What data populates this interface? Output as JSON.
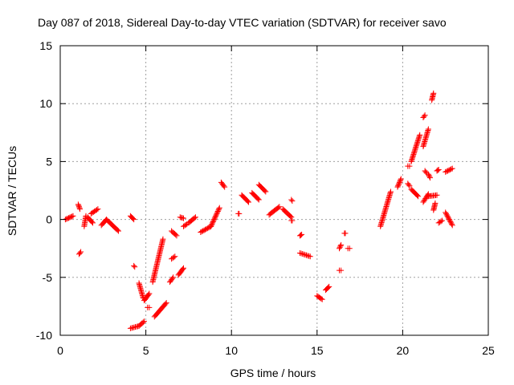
{
  "chart_data": {
    "type": "scatter",
    "title": "Day 087 of 2018, Sidereal Day-to-day VTEC variation (SDTVAR) for receiver savo",
    "xlabel": "GPS time / hours",
    "ylabel": "SDTVAR / TECUs",
    "xlim": [
      0,
      25
    ],
    "ylim": [
      -10,
      15
    ],
    "xticks": [
      0,
      5,
      10,
      15,
      20,
      25
    ],
    "yticks": [
      -10,
      -5,
      0,
      5,
      10,
      15
    ],
    "grid": true,
    "marker": "+",
    "series_color": "#ff0000",
    "segments": [
      {
        "x0": 0.3,
        "y0": 0.0,
        "x1": 0.75,
        "y1": 0.3
      },
      {
        "x0": 1.05,
        "y0": 1.3,
        "x1": 1.15,
        "y1": 0.9
      },
      {
        "x0": 1.1,
        "y0": -3.0,
        "x1": 1.2,
        "y1": -2.8
      },
      {
        "x0": 1.4,
        "y0": -0.6,
        "x1": 1.5,
        "y1": 0.3
      },
      {
        "x0": 1.6,
        "y0": 0.2,
        "x1": 1.9,
        "y1": -0.3
      },
      {
        "x0": 1.8,
        "y0": 0.5,
        "x1": 2.2,
        "y1": 0.9
      },
      {
        "x0": 2.4,
        "y0": -0.5,
        "x1": 2.7,
        "y1": 0.0
      },
      {
        "x0": 2.7,
        "y0": 0.0,
        "x1": 3.4,
        "y1": -1.0
      },
      {
        "x0": 4.1,
        "y0": 0.3,
        "x1": 4.3,
        "y1": 0.0
      },
      {
        "x0": 4.3,
        "y0": -4.0,
        "x1": 4.35,
        "y1": -4.1
      },
      {
        "x0": 4.1,
        "y0": -9.4,
        "x1": 4.6,
        "y1": -9.2
      },
      {
        "x0": 4.6,
        "y0": -9.2,
        "x1": 4.9,
        "y1": -8.8
      },
      {
        "x0": 4.6,
        "y0": -5.5,
        "x1": 4.85,
        "y1": -6.8
      },
      {
        "x0": 4.9,
        "y0": -7.0,
        "x1": 5.2,
        "y1": -6.4
      },
      {
        "x0": 5.1,
        "y0": -7.6,
        "x1": 5.2,
        "y1": -7.6
      },
      {
        "x0": 5.4,
        "y0": -5.4,
        "x1": 6.0,
        "y1": -1.7
      },
      {
        "x0": 5.5,
        "y0": -8.4,
        "x1": 6.2,
        "y1": -7.2
      },
      {
        "x0": 6.4,
        "y0": -5.4,
        "x1": 6.6,
        "y1": -5.0
      },
      {
        "x0": 6.5,
        "y0": -3.4,
        "x1": 6.7,
        "y1": -3.2
      },
      {
        "x0": 6.5,
        "y0": -1.0,
        "x1": 6.8,
        "y1": -1.4
      },
      {
        "x0": 6.9,
        "y0": -4.8,
        "x1": 7.2,
        "y1": -4.2
      },
      {
        "x0": 7.0,
        "y0": 0.2,
        "x1": 7.2,
        "y1": 0.1
      },
      {
        "x0": 7.2,
        "y0": -0.6,
        "x1": 7.4,
        "y1": -0.4
      },
      {
        "x0": 7.5,
        "y0": -0.3,
        "x1": 7.9,
        "y1": 0.2
      },
      {
        "x0": 8.2,
        "y0": -1.1,
        "x1": 8.8,
        "y1": -0.6
      },
      {
        "x0": 8.8,
        "y0": -0.6,
        "x1": 9.3,
        "y1": 1.0
      },
      {
        "x0": 9.4,
        "y0": 3.2,
        "x1": 9.6,
        "y1": 2.8
      },
      {
        "x0": 10.4,
        "y0": 0.5,
        "x1": 10.45,
        "y1": 0.5
      },
      {
        "x0": 10.6,
        "y0": 2.1,
        "x1": 11.0,
        "y1": 1.5
      },
      {
        "x0": 11.2,
        "y0": 2.3,
        "x1": 11.6,
        "y1": 1.7
      },
      {
        "x0": 11.6,
        "y0": 3.0,
        "x1": 12.0,
        "y1": 2.4
      },
      {
        "x0": 12.2,
        "y0": 0.4,
        "x1": 12.8,
        "y1": 1.1
      },
      {
        "x0": 13.0,
        "y0": 0.9,
        "x1": 13.5,
        "y1": 0.2
      },
      {
        "x0": 13.5,
        "y0": 1.7,
        "x1": 13.55,
        "y1": 1.6
      },
      {
        "x0": 13.5,
        "y0": -0.1,
        "x1": 13.55,
        "y1": -0.1
      },
      {
        "x0": 14.0,
        "y0": -1.4,
        "x1": 14.1,
        "y1": -1.3
      },
      {
        "x0": 14.0,
        "y0": -2.9,
        "x1": 14.6,
        "y1": -3.2
      },
      {
        "x0": 15.0,
        "y0": -6.6,
        "x1": 15.3,
        "y1": -6.9
      },
      {
        "x0": 15.5,
        "y0": -6.1,
        "x1": 15.7,
        "y1": -5.8
      },
      {
        "x0": 16.3,
        "y0": -4.4,
        "x1": 16.4,
        "y1": -4.4
      },
      {
        "x0": 16.3,
        "y0": -2.5,
        "x1": 16.4,
        "y1": -2.2
      },
      {
        "x0": 16.6,
        "y0": -1.2,
        "x1": 16.65,
        "y1": -1.2
      },
      {
        "x0": 16.8,
        "y0": -2.5,
        "x1": 16.9,
        "y1": -2.5
      },
      {
        "x0": 18.7,
        "y0": -0.6,
        "x1": 19.3,
        "y1": 2.4
      },
      {
        "x0": 19.7,
        "y0": 2.8,
        "x1": 19.9,
        "y1": 3.5
      },
      {
        "x0": 20.3,
        "y0": 4.6,
        "x1": 20.4,
        "y1": 4.6
      },
      {
        "x0": 20.3,
        "y0": 3.1,
        "x1": 20.4,
        "y1": 2.9
      },
      {
        "x0": 20.5,
        "y0": 5.0,
        "x1": 21.0,
        "y1": 7.3
      },
      {
        "x0": 20.5,
        "y0": 2.6,
        "x1": 20.9,
        "y1": 2.0
      },
      {
        "x0": 21.2,
        "y0": 1.5,
        "x1": 21.5,
        "y1": 2.2
      },
      {
        "x0": 21.2,
        "y0": 8.8,
        "x1": 21.3,
        "y1": 9.0
      },
      {
        "x0": 21.2,
        "y0": 6.3,
        "x1": 21.5,
        "y1": 7.8
      },
      {
        "x0": 21.3,
        "y0": 4.2,
        "x1": 21.4,
        "y1": 4.0
      },
      {
        "x0": 21.5,
        "y0": 3.9,
        "x1": 21.6,
        "y1": 3.6
      },
      {
        "x0": 21.7,
        "y0": 10.3,
        "x1": 21.8,
        "y1": 10.9
      },
      {
        "x0": 21.5,
        "y0": 2.0,
        "x1": 22.0,
        "y1": 2.1
      },
      {
        "x0": 21.8,
        "y0": 0.8,
        "x1": 21.9,
        "y1": 1.4
      },
      {
        "x0": 22.0,
        "y0": 4.2,
        "x1": 22.1,
        "y1": 4.3
      },
      {
        "x0": 22.1,
        "y0": -0.3,
        "x1": 22.3,
        "y1": -0.1
      },
      {
        "x0": 22.5,
        "y0": 4.1,
        "x1": 22.9,
        "y1": 4.4
      },
      {
        "x0": 22.5,
        "y0": 0.6,
        "x1": 22.9,
        "y1": -0.5
      }
    ]
  }
}
